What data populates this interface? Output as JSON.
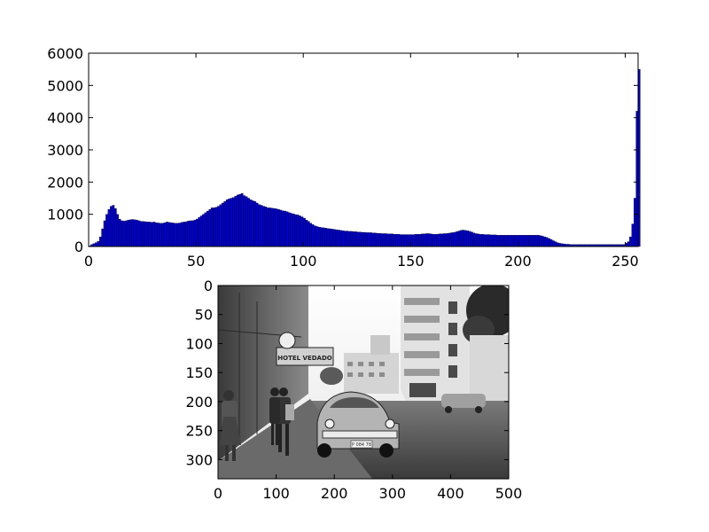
{
  "chart_data": [
    {
      "type": "bar",
      "title": "",
      "xlabel": "",
      "ylabel": "",
      "xlim": [
        0,
        256
      ],
      "ylim": [
        0,
        6000
      ],
      "grid": false,
      "bar_color": "#0000cc",
      "edge_color": "#000000",
      "x_ticks": [
        0,
        50,
        100,
        150,
        200,
        250
      ],
      "x_tick_labels": [
        "0",
        "50",
        "100",
        "150",
        "200",
        "250"
      ],
      "y_ticks": [
        0,
        1000,
        2000,
        3000,
        4000,
        5000,
        6000
      ],
      "y_tick_labels": [
        "0",
        "1000",
        "2000",
        "3000",
        "4000",
        "5000",
        "6000"
      ],
      "bin_width": 1,
      "values": [
        20,
        60,
        90,
        120,
        160,
        300,
        550,
        800,
        1000,
        1150,
        1250,
        1280,
        1180,
        1000,
        850,
        800,
        790,
        800,
        820,
        830,
        840,
        830,
        820,
        800,
        780,
        780,
        770,
        760,
        760,
        750,
        760,
        740,
        730,
        720,
        720,
        740,
        760,
        750,
        740,
        730,
        720,
        720,
        730,
        750,
        760,
        770,
        790,
        800,
        800,
        820,
        850,
        900,
        950,
        1000,
        1050,
        1100,
        1150,
        1200,
        1200,
        1220,
        1250,
        1300,
        1350,
        1400,
        1450,
        1480,
        1500,
        1520,
        1560,
        1600,
        1620,
        1650,
        1580,
        1550,
        1500,
        1450,
        1420,
        1400,
        1350,
        1300,
        1280,
        1250,
        1230,
        1200,
        1200,
        1190,
        1180,
        1170,
        1150,
        1130,
        1110,
        1100,
        1080,
        1050,
        1030,
        1010,
        990,
        980,
        950,
        920,
        880,
        820,
        780,
        720,
        680,
        640,
        620,
        600,
        590,
        580,
        570,
        560,
        550,
        540,
        530,
        520,
        510,
        500,
        490,
        480,
        480,
        470,
        470,
        460,
        460,
        450,
        450,
        440,
        440,
        430,
        430,
        430,
        420,
        420,
        410,
        410,
        400,
        400,
        400,
        390,
        390,
        390,
        380,
        380,
        380,
        370,
        370,
        370,
        370,
        370,
        370,
        370,
        380,
        380,
        380,
        390,
        390,
        400,
        400,
        390,
        380,
        380,
        380,
        390,
        390,
        400,
        400,
        410,
        420,
        430,
        440,
        460,
        480,
        500,
        510,
        500,
        490,
        470,
        450,
        420,
        400,
        390,
        380,
        380,
        370,
        370,
        370,
        360,
        360,
        360,
        350,
        350,
        350,
        350,
        350,
        350,
        350,
        350,
        350,
        350,
        350,
        350,
        350,
        350,
        350,
        350,
        350,
        350,
        350,
        350,
        340,
        320,
        300,
        280,
        250,
        220,
        180,
        150,
        120,
        100,
        90,
        80,
        70,
        70,
        60,
        60,
        60,
        60,
        60,
        60,
        60,
        60,
        60,
        60,
        60,
        60,
        60,
        60,
        60,
        60,
        60,
        60,
        60,
        60,
        60,
        60,
        60,
        60,
        60,
        60,
        100,
        150,
        300,
        700,
        1500,
        4200,
        5500
      ]
    },
    {
      "type": "image",
      "title": "",
      "xlabel": "",
      "ylabel": "",
      "xlim": [
        0,
        500
      ],
      "ylim": [
        333,
        0
      ],
      "x_ticks": [
        0,
        100,
        200,
        300,
        400,
        500
      ],
      "x_tick_labels": [
        "0",
        "100",
        "200",
        "300",
        "400",
        "500"
      ],
      "y_ticks": [
        0,
        50,
        100,
        150,
        200,
        250,
        300
      ],
      "y_tick_labels": [
        "0",
        "50",
        "100",
        "150",
        "200",
        "250",
        "300"
      ]
    }
  ],
  "image_content": {
    "sign_text": "HOTEL VEDADO",
    "plate_text": "P 084 78"
  }
}
